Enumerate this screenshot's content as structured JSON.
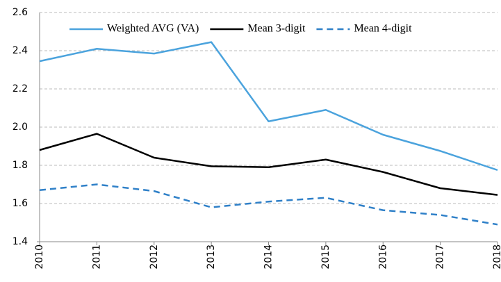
{
  "chart_data": {
    "type": "line",
    "categories": [
      "2010",
      "2011",
      "2012",
      "2013",
      "2014",
      "2015",
      "2016",
      "2017",
      "2018"
    ],
    "series": [
      {
        "name": "Weighted AVG (VA)",
        "color": "#4ba3dd",
        "dash": false,
        "values": [
          2.345,
          2.41,
          2.385,
          2.445,
          2.03,
          2.09,
          1.96,
          1.875,
          1.775
        ]
      },
      {
        "name": "Mean 3-digit",
        "color": "#000000",
        "dash": false,
        "values": [
          1.88,
          1.965,
          1.84,
          1.795,
          1.79,
          1.83,
          1.765,
          1.68,
          1.645
        ]
      },
      {
        "name": "Mean 4-digit",
        "color": "#2f80c8",
        "dash": true,
        "values": [
          1.67,
          1.7,
          1.665,
          1.58,
          1.61,
          1.63,
          1.565,
          1.54,
          1.49
        ]
      }
    ],
    "ylim": [
      1.4,
      2.6
    ],
    "yticks": [
      1.4,
      1.6,
      1.8,
      {
        "value": 2,
        "label": "2.0"
      },
      2.2,
      2.4,
      2.6
    ],
    "grid": true,
    "legend": "top"
  }
}
